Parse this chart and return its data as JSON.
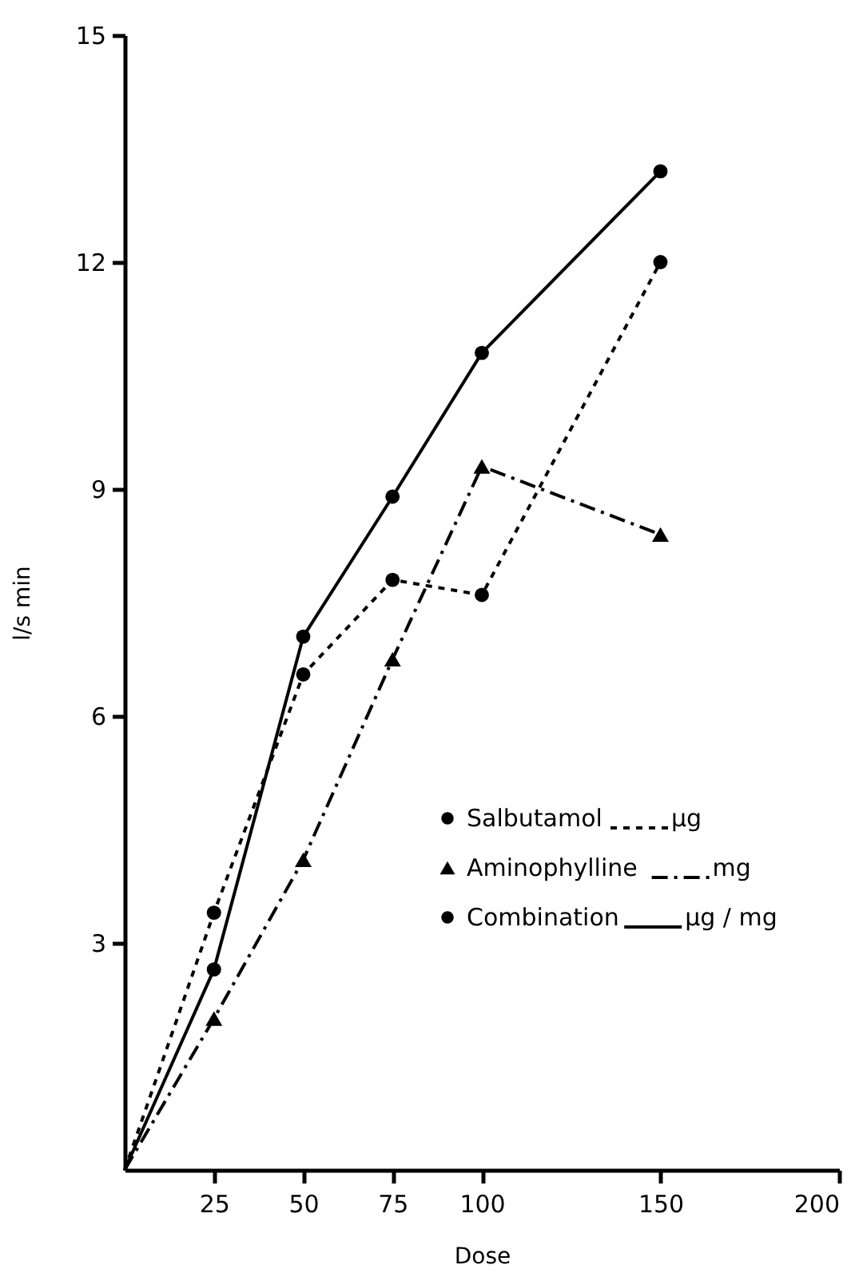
{
  "chart_data": {
    "type": "line",
    "xlabel": "Dose",
    "ylabel": "l/s min",
    "x": [
      0,
      25,
      50,
      75,
      100,
      150
    ],
    "series": [
      {
        "name": "Salbutamol",
        "color": "#000000",
        "marker": "circle",
        "line_style": "dotted",
        "values": [
          0,
          3.4,
          6.55,
          7.8,
          7.6,
          12.0
        ]
      },
      {
        "name": "Aminophylline",
        "color": "#000000",
        "marker": "triangle",
        "line_style": "dashed",
        "values": [
          0,
          2.0,
          4.1,
          6.75,
          9.3,
          8.4
        ]
      },
      {
        "name": "Combination",
        "color": "#000000",
        "marker": "circle",
        "line_style": "solid",
        "values": [
          0,
          2.65,
          7.05,
          8.9,
          10.8,
          13.2
        ]
      }
    ],
    "annotations": [
      "µg",
      "mg",
      "µg / mg"
    ],
    "xlim": [
      0,
      200
    ],
    "xticks": [
      25,
      50,
      75,
      100,
      150,
      200
    ],
    "ylim": [
      0,
      15
    ],
    "yticks": [
      3,
      6,
      9,
      12,
      15
    ],
    "grid": false,
    "legend": "bottom right"
  }
}
